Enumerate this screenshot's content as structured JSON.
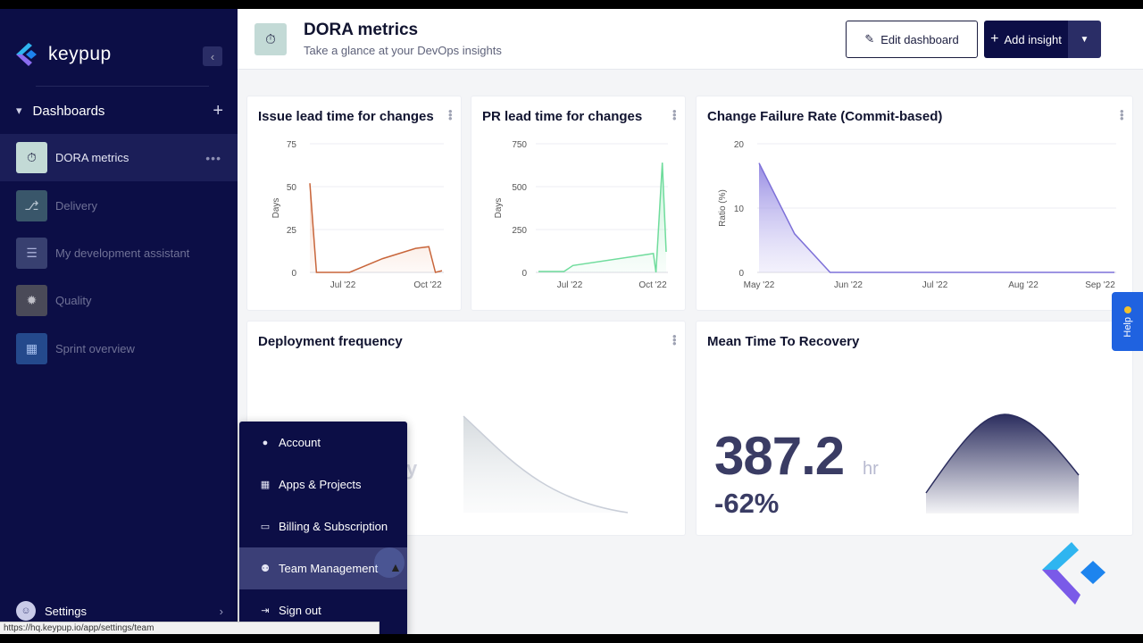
{
  "brand": {
    "name": "keypup"
  },
  "sidebar": {
    "section_label": "Dashboards",
    "items": [
      {
        "label": "DORA metrics",
        "icon": "stopwatch-icon",
        "active": true
      },
      {
        "label": "Delivery",
        "icon": "branch-icon",
        "active": false
      },
      {
        "label": "My development assistant",
        "icon": "tasks-icon",
        "active": false
      },
      {
        "label": "Quality",
        "icon": "bug-icon",
        "active": false
      },
      {
        "label": "Sprint overview",
        "icon": "calendar-icon",
        "active": false
      }
    ],
    "settings_label": "Settings"
  },
  "user_menu": {
    "items": [
      {
        "label": "Account",
        "icon": "user-icon"
      },
      {
        "label": "Apps & Projects",
        "icon": "grid-icon"
      },
      {
        "label": "Billing & Subscription",
        "icon": "credit-card-icon"
      },
      {
        "label": "Team Management",
        "icon": "users-icon",
        "hover": true
      },
      {
        "label": "Sign out",
        "icon": "sign-out-icon"
      }
    ]
  },
  "status_bar": {
    "url": "https://hq.keypup.io/app/settings/team"
  },
  "header": {
    "title": "DORA metrics",
    "subtitle": "Take a glance at your DevOps insights",
    "edit_label": "Edit dashboard",
    "add_label": "Add insight"
  },
  "help": {
    "label": "Help"
  },
  "cards": {
    "issue_lead": {
      "title": "Issue lead time for changes"
    },
    "pr_lead": {
      "title": "PR lead time for changes"
    },
    "cfr": {
      "title": "Change Failure Rate (Commit-based)"
    },
    "deploy": {
      "title": "Deployment frequency",
      "faded_text": "y"
    },
    "mttr": {
      "title": "Mean Time To Recovery",
      "value": "387.2",
      "unit": "hr",
      "change": "-62%"
    }
  },
  "colors": {
    "sidebar_bg": "#0c0e46",
    "issue_line": "#c8653a",
    "pr_line": "#6fdc9c",
    "cfr_fill": "#8b7fe0",
    "mttr_fill": "#2b2d5e"
  },
  "chart_data": [
    {
      "type": "area",
      "title": "Issue lead time for changes",
      "ylabel": "Days",
      "ylim": [
        0,
        75
      ],
      "yticks": [
        "75",
        "50",
        "25",
        "0"
      ],
      "xticks": [
        "Jul '22",
        "Oct '22"
      ],
      "points": [
        [
          0.0,
          52
        ],
        [
          0.05,
          0
        ],
        [
          0.3,
          0
        ],
        [
          0.55,
          8
        ],
        [
          0.8,
          14
        ],
        [
          0.9,
          15
        ],
        [
          0.95,
          0
        ],
        [
          1.0,
          1
        ]
      ]
    },
    {
      "type": "area",
      "title": "PR lead time for changes",
      "ylabel": "Days",
      "ylim": [
        0,
        750
      ],
      "yticks": [
        "750",
        "500",
        "250",
        "0"
      ],
      "xticks": [
        "Jul '22",
        "Oct '22"
      ],
      "points": [
        [
          0.0,
          5
        ],
        [
          0.2,
          5
        ],
        [
          0.27,
          40
        ],
        [
          0.9,
          110
        ],
        [
          0.92,
          0
        ],
        [
          0.97,
          640
        ],
        [
          1.0,
          120
        ]
      ]
    },
    {
      "type": "area",
      "title": "Change Failure Rate (Commit-based)",
      "ylabel": "Ratio (%)",
      "ylim": [
        0,
        20
      ],
      "yticks": [
        "20",
        "10",
        "0"
      ],
      "xticks": [
        "May '22",
        "Jun '22",
        "Jul '22",
        "Aug '22",
        "Sep '22"
      ],
      "points": [
        [
          0.0,
          17
        ],
        [
          0.1,
          6
        ],
        [
          0.2,
          0
        ],
        [
          1.0,
          0
        ]
      ]
    }
  ]
}
